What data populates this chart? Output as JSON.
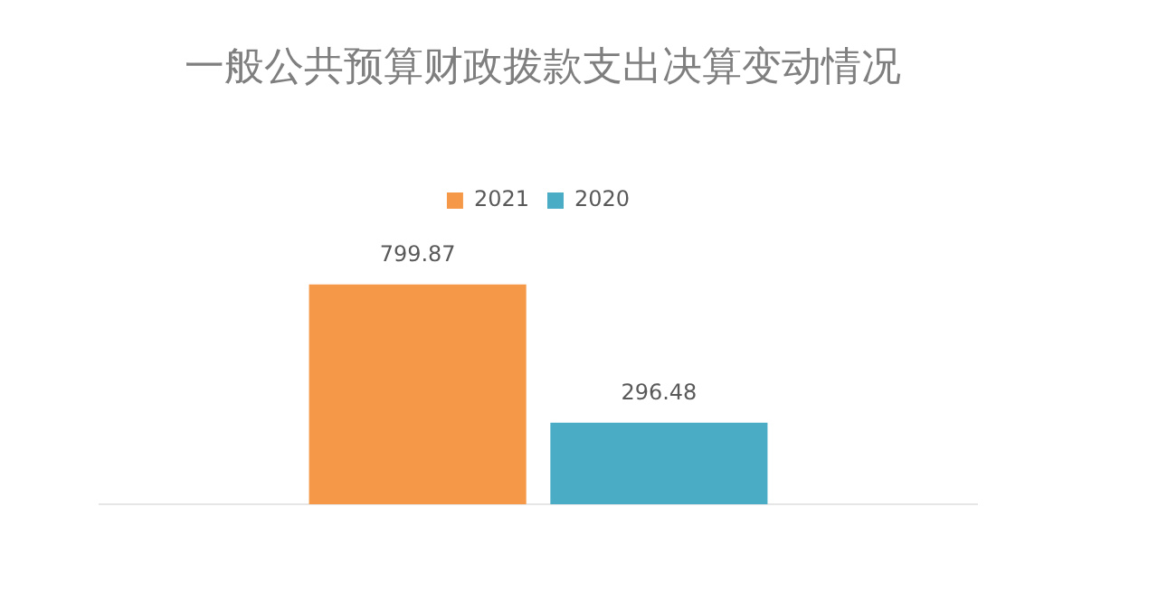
{
  "chart_data": {
    "type": "bar",
    "title": "一般公共预算财政拨款支出决算变动情况",
    "categories": [
      null
    ],
    "series": [
      {
        "name": "2021",
        "color": "#f59847",
        "values": [
          799.87
        ]
      },
      {
        "name": "2020",
        "color": "#4bacc6",
        "values": [
          296.48
        ]
      }
    ],
    "data_labels": true,
    "legend": "top",
    "grid": false,
    "tick_labels": false
  }
}
